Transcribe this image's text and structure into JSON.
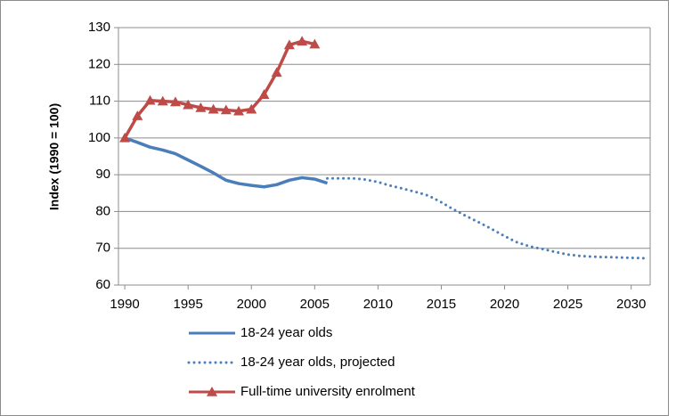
{
  "chart_data": {
    "type": "line",
    "y_label": "Index (1990 = 100)",
    "x": [
      1990,
      1991,
      1992,
      1993,
      1994,
      1995,
      1996,
      1997,
      1998,
      1999,
      2000,
      2001,
      2002,
      2003,
      2004,
      2005,
      2006,
      2007,
      2008,
      2009,
      2010,
      2011,
      2012,
      2013,
      2014,
      2015,
      2016,
      2017,
      2018,
      2019,
      2020,
      2021,
      2022,
      2023,
      2024,
      2025,
      2026,
      2027,
      2028,
      2029,
      2030,
      2031
    ],
    "xlim": [
      1989.5,
      2031.5
    ],
    "xticks": [
      1990,
      1995,
      2000,
      2005,
      2010,
      2015,
      2020,
      2025,
      2030
    ],
    "ylim": [
      60,
      130
    ],
    "yticks": [
      60,
      70,
      80,
      90,
      100,
      110,
      120,
      130
    ],
    "grid": true,
    "legend": "bottom",
    "series": [
      {
        "name": "18-24 year olds",
        "color": "#4a7ebb",
        "style": "solid",
        "marker": "none",
        "values": [
          100,
          98.8,
          97.5,
          96.7,
          95.7,
          94,
          92.3,
          90.5,
          88.5,
          87.6,
          87.1,
          86.7,
          87.3,
          88.5,
          89.2,
          88.8,
          87.7,
          null,
          null,
          null,
          null,
          null,
          null,
          null,
          null,
          null,
          null,
          null,
          null,
          null,
          null,
          null,
          null,
          null,
          null,
          null,
          null,
          null,
          null,
          null,
          null,
          null
        ]
      },
      {
        "name": "18-24 year olds, projected",
        "color": "#4a7ebb",
        "style": "dotted",
        "marker": "none",
        "values": [
          null,
          null,
          null,
          null,
          null,
          null,
          null,
          null,
          null,
          null,
          null,
          null,
          null,
          null,
          null,
          null,
          89,
          89,
          89,
          88.7,
          88,
          87,
          86.2,
          85.3,
          84.3,
          82.5,
          80.5,
          78.7,
          77,
          75.2,
          73.3,
          71.6,
          70.5,
          69.8,
          69,
          68.3,
          67.9,
          67.7,
          67.6,
          67.5,
          67.4,
          67.3
        ]
      },
      {
        "name": "Full-time university enrolment",
        "color": "#be4b48",
        "style": "solid",
        "marker": "triangle",
        "values": [
          100,
          106,
          110.2,
          110,
          109.8,
          109,
          108.2,
          107.8,
          107.6,
          107.3,
          107.8,
          111.8,
          117.8,
          125.3,
          126.3,
          125.5,
          null,
          null,
          null,
          null,
          null,
          null,
          null,
          null,
          null,
          null,
          null,
          null,
          null,
          null,
          null,
          null,
          null,
          null,
          null,
          null,
          null,
          null,
          null,
          null,
          null,
          null
        ]
      }
    ]
  }
}
